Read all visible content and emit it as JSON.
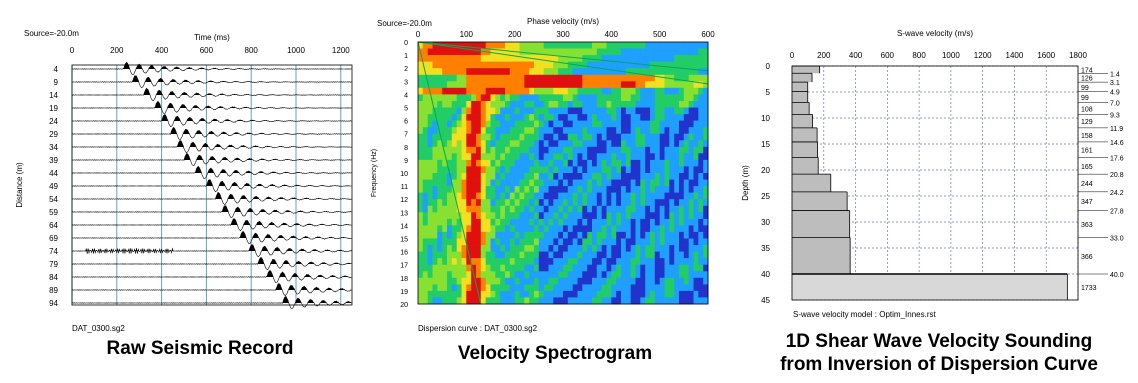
{
  "panels": {
    "raw": {
      "header_text": "Source=-20.0m",
      "file_label": "DAT_0300.sg2",
      "caption": "Raw Seismic Record"
    },
    "spec": {
      "header_text": "Source=-20.0m",
      "footer_text": "Dispersion curve : DAT_0300.sg2",
      "caption": "Velocity Spectrogram"
    },
    "profile": {
      "footer_text": "S-wave velocity model  : Optim_Innes.rst",
      "caption_line1": "1D Shear Wave Velocity Sounding",
      "caption_line2": "from Inversion of Dispersion Curve"
    }
  },
  "chart_data": [
    {
      "type": "seismic-wiggle",
      "xlabel": "Time (ms)",
      "ylabel": "Distance (m)",
      "xlim": [
        0,
        1250
      ],
      "x_ticks": [
        0,
        200,
        400,
        600,
        800,
        1000,
        1200
      ],
      "traces_distance_m": [
        4,
        9,
        14,
        19,
        24,
        29,
        34,
        39,
        44,
        49,
        54,
        59,
        64,
        69,
        74,
        79,
        84,
        89,
        94
      ],
      "first_arrival_ms": [
        230,
        270,
        320,
        370,
        400,
        440,
        470,
        500,
        550,
        600,
        640,
        670,
        710,
        750,
        790,
        830,
        870,
        910,
        940
      ],
      "grid": true
    },
    {
      "type": "heatmap",
      "xlabel": "Phase velocity (m/s)",
      "ylabel": "Frequency (Hz)",
      "xlim": [
        0,
        600
      ],
      "ylim": [
        0,
        20
      ],
      "x_ticks": [
        0,
        100,
        200,
        300,
        400,
        500,
        600
      ],
      "y_ticks": [
        0,
        1,
        2,
        3,
        4,
        5,
        6,
        7,
        8,
        9,
        10,
        11,
        12,
        13,
        14,
        15,
        16,
        17,
        18,
        19,
        20
      ],
      "colormap": [
        "#2233cc",
        "#1f9fff",
        "#22cc66",
        "#88e030",
        "#f0e020",
        "#ff8000",
        "#e01010"
      ],
      "dispersion_peak_velocity": [
        {
          "freq": 3,
          "velocity": 380
        },
        {
          "freq": 4,
          "velocity": 135
        },
        {
          "freq": 5,
          "velocity": 125
        },
        {
          "freq": 6,
          "velocity": 120
        },
        {
          "freq": 7,
          "velocity": 118
        },
        {
          "freq": 8,
          "velocity": 118
        },
        {
          "freq": 9,
          "velocity": 117
        },
        {
          "freq": 10,
          "velocity": 117
        },
        {
          "freq": 11,
          "velocity": 117
        },
        {
          "freq": 12,
          "velocity": 117
        },
        {
          "freq": 13,
          "velocity": 117
        },
        {
          "freq": 14,
          "velocity": 117
        },
        {
          "freq": 15,
          "velocity": 117
        },
        {
          "freq": 16,
          "velocity": 117
        },
        {
          "freq": 17,
          "velocity": 117
        },
        {
          "freq": 18,
          "velocity": 117
        },
        {
          "freq": 19,
          "velocity": 117
        },
        {
          "freq": 20,
          "velocity": 117
        }
      ]
    },
    {
      "type": "step-profile",
      "title": "S-wave velocity (m/s)",
      "xlabel": "S-wave velocity (m/s)",
      "ylabel": "Depth (m)",
      "xlim": [
        0,
        1800
      ],
      "ylim": [
        0,
        45
      ],
      "x_ticks": [
        0,
        200,
        400,
        600,
        800,
        1000,
        1200,
        1400,
        1600,
        1800
      ],
      "y_ticks": [
        0,
        5,
        10,
        15,
        20,
        25,
        30,
        35,
        40,
        45
      ],
      "layers": [
        {
          "top": 0,
          "bottom": 1.4,
          "vs": 174
        },
        {
          "top": 1.4,
          "bottom": 3.1,
          "vs": 126
        },
        {
          "top": 3.1,
          "bottom": 4.9,
          "vs": 99
        },
        {
          "top": 4.9,
          "bottom": 7.0,
          "vs": 99
        },
        {
          "top": 7.0,
          "bottom": 9.3,
          "vs": 108
        },
        {
          "top": 9.3,
          "bottom": 11.9,
          "vs": 129
        },
        {
          "top": 11.9,
          "bottom": 14.6,
          "vs": 158
        },
        {
          "top": 14.6,
          "bottom": 17.6,
          "vs": 161
        },
        {
          "top": 17.6,
          "bottom": 20.8,
          "vs": 165
        },
        {
          "top": 20.8,
          "bottom": 24.2,
          "vs": 244
        },
        {
          "top": 24.2,
          "bottom": 27.8,
          "vs": 347
        },
        {
          "top": 27.8,
          "bottom": 33.0,
          "vs": 363
        },
        {
          "top": 33.0,
          "bottom": 40.0,
          "vs": 366
        },
        {
          "top": 40.0,
          "bottom": 45,
          "vs": 1733
        }
      ],
      "grid": true
    }
  ]
}
